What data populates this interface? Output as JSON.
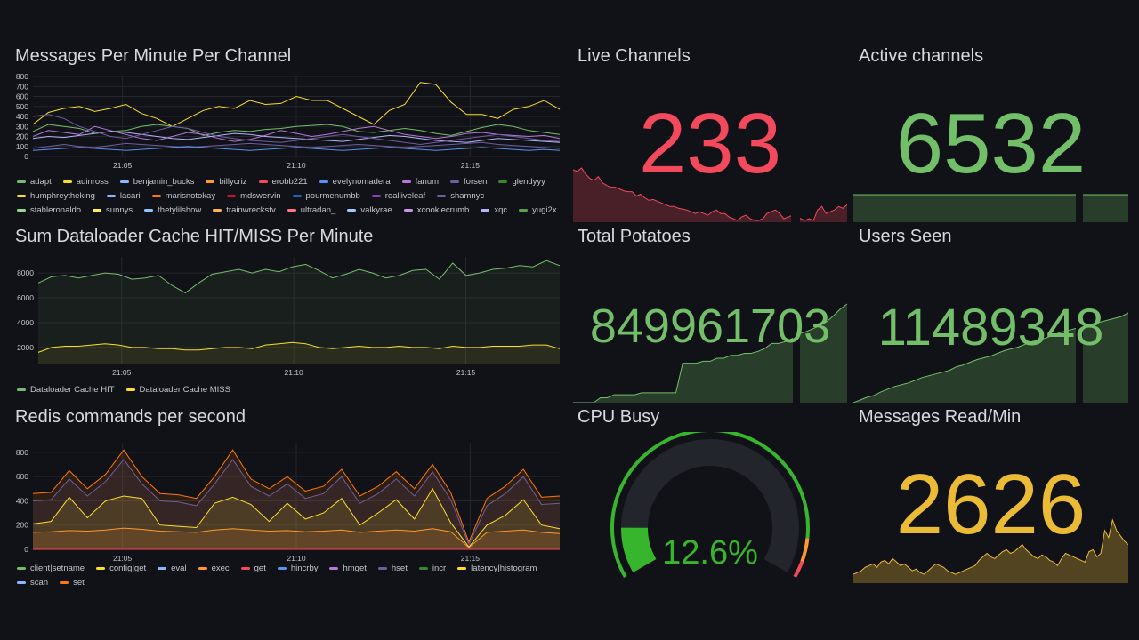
{
  "colors": {
    "red": "#f2495c",
    "green": "#73bf69",
    "yellow": "#fade2a",
    "orange": "#ff9830",
    "blue": "#5794f2",
    "purple": "#b877d9",
    "bg": "#111217"
  },
  "panels": {
    "messages_per_minute": {
      "title": "Messages Per Minute Per Channel",
      "legend": [
        {
          "name": "adapt",
          "color": "#73bf69"
        },
        {
          "name": "adinross",
          "color": "#fade2a"
        },
        {
          "name": "benjamin_bucks",
          "color": "#8ab8ff"
        },
        {
          "name": "billycriz",
          "color": "#ff9830"
        },
        {
          "name": "erobb221",
          "color": "#f2495c"
        },
        {
          "name": "evelynomadera",
          "color": "#5794f2"
        },
        {
          "name": "fanum",
          "color": "#b877d9"
        },
        {
          "name": "forsen",
          "color": "#705da0"
        },
        {
          "name": "glendyyy",
          "color": "#37872d"
        },
        {
          "name": "humphreytheking",
          "color": "#fade2a"
        },
        {
          "name": "lacari",
          "color": "#8ab8ff"
        },
        {
          "name": "marisnotokay",
          "color": "#ff780a"
        },
        {
          "name": "mdswervin",
          "color": "#c4162a"
        },
        {
          "name": "pourmenumbb",
          "color": "#1f60c4"
        },
        {
          "name": "realliveleaf",
          "color": "#8f3bb8"
        },
        {
          "name": "shamnyc",
          "color": "#705da0"
        },
        {
          "name": "stableronaldo",
          "color": "#96d98d"
        },
        {
          "name": "sunnys",
          "color": "#ffee52"
        },
        {
          "name": "thetylilshow",
          "color": "#8ac8ff"
        },
        {
          "name": "trainwreckstv",
          "color": "#ffb357"
        },
        {
          "name": "ultradan_",
          "color": "#ff7383"
        },
        {
          "name": "valkyrae",
          "color": "#a2c8ff"
        },
        {
          "name": "xcookiecrumb",
          "color": "#ca95e5"
        },
        {
          "name": "xqc",
          "color": "#b3b3ff"
        },
        {
          "name": "yugi2x",
          "color": "#56a64b"
        }
      ]
    },
    "live_channels": {
      "title": "Live Channels",
      "value": "233",
      "color": "#f2495c"
    },
    "active_channels": {
      "title": "Active channels",
      "value": "6532",
      "color": "#73bf69"
    },
    "dataloader": {
      "title": "Sum Dataloader Cache HIT/MISS Per Minute",
      "legend": [
        {
          "name": "Dataloader Cache HIT",
          "color": "#73bf69"
        },
        {
          "name": "Dataloader Cache MISS",
          "color": "#fade2a"
        }
      ]
    },
    "total_potatoes": {
      "title": "Total Potatoes",
      "value": "849961703",
      "color": "#73bf69"
    },
    "users_seen": {
      "title": "Users Seen",
      "value": "11489348",
      "color": "#73bf69"
    },
    "redis": {
      "title": "Redis commands per second",
      "legend": [
        {
          "name": "client|setname",
          "color": "#73bf69"
        },
        {
          "name": "config|get",
          "color": "#fade2a"
        },
        {
          "name": "eval",
          "color": "#8ab8ff"
        },
        {
          "name": "exec",
          "color": "#ff9830"
        },
        {
          "name": "get",
          "color": "#f2495c"
        },
        {
          "name": "hincrby",
          "color": "#5794f2"
        },
        {
          "name": "hmget",
          "color": "#b877d9"
        },
        {
          "name": "hset",
          "color": "#705da0"
        },
        {
          "name": "incr",
          "color": "#37872d"
        },
        {
          "name": "latency|histogram",
          "color": "#fade2a"
        },
        {
          "name": "scan",
          "color": "#8ab8ff"
        },
        {
          "name": "set",
          "color": "#ff780a"
        }
      ]
    },
    "cpu_busy": {
      "title": "CPU Busy",
      "value": "12.6%",
      "percent": 12.6
    },
    "messages_read": {
      "title": "Messages Read/Min",
      "value": "2626",
      "color": "#ecbb36"
    }
  },
  "chart_data": [
    {
      "type": "line",
      "title": "Messages Per Minute Per Channel",
      "x_ticks": [
        "21:05",
        "21:10",
        "21:15"
      ],
      "y_ticks": [
        0,
        100,
        200,
        300,
        400,
        500,
        600,
        700,
        800
      ],
      "ylim": [
        0,
        800
      ],
      "series": [
        {
          "name": "adinross",
          "values": [
            320,
            440,
            480,
            500,
            450,
            480,
            520,
            430,
            380,
            300,
            380,
            460,
            500,
            480,
            560,
            520,
            530,
            600,
            560,
            560,
            480,
            400,
            320,
            460,
            520,
            740,
            720,
            540,
            420,
            420,
            380,
            470,
            500,
            560,
            470
          ]
        },
        {
          "name": "adapt",
          "values": [
            250,
            320,
            300,
            280,
            230,
            250,
            260,
            300,
            320,
            300,
            280,
            210,
            240,
            260,
            250,
            270,
            280,
            300,
            310,
            320,
            300,
            250,
            240,
            260,
            280,
            260,
            230,
            210,
            250,
            290,
            320,
            300,
            260,
            240,
            220
          ]
        },
        {
          "name": "fanum",
          "values": [
            200,
            260,
            240,
            220,
            300,
            260,
            220,
            180,
            160,
            200,
            240,
            220,
            180,
            150,
            170,
            210,
            260,
            230,
            200,
            220,
            250,
            280,
            300,
            260,
            220,
            200,
            180,
            200,
            230,
            240,
            220,
            210,
            200,
            210,
            180
          ]
        },
        {
          "name": "xqc",
          "values": [
            180,
            200,
            190,
            210,
            230,
            250,
            240,
            220,
            200,
            180,
            170,
            190,
            210,
            230,
            220,
            200,
            190,
            180,
            170,
            160,
            150,
            170,
            190,
            210,
            200,
            180,
            160,
            150,
            140,
            160,
            180,
            170,
            160,
            150,
            140
          ]
        },
        {
          "name": "forsen",
          "values": [
            400,
            420,
            380,
            300,
            250,
            200,
            180,
            220,
            260,
            300,
            280,
            240,
            200,
            180,
            160,
            150,
            140,
            160,
            180,
            200,
            220,
            200,
            180,
            160,
            140,
            120,
            140,
            160,
            180,
            200,
            220,
            200,
            180,
            160,
            150
          ]
        },
        {
          "name": "shamnyc",
          "values": [
            80,
            100,
            120,
            100,
            90,
            110,
            130,
            120,
            110,
            100,
            90,
            100,
            110,
            120,
            130,
            120,
            110,
            100,
            90,
            100,
            110,
            120,
            110,
            100,
            90,
            100,
            110,
            120,
            130,
            140,
            120,
            110,
            100,
            90,
            80
          ]
        },
        {
          "name": "evelynomadera",
          "values": [
            60,
            70,
            80,
            90,
            80,
            70,
            60,
            70,
            80,
            90,
            100,
            90,
            80,
            70,
            60,
            70,
            80,
            90,
            80,
            70,
            60,
            70,
            80,
            90,
            80,
            70,
            60,
            70,
            80,
            90,
            80,
            70,
            60,
            70,
            60
          ]
        }
      ]
    },
    {
      "type": "area",
      "title": "Sum Dataloader Cache HIT/MISS Per Minute",
      "x_ticks": [
        "21:05",
        "21:10",
        "21:15"
      ],
      "y_ticks": [
        2000,
        4000,
        6000,
        8000
      ],
      "ylim": [
        700,
        9300
      ],
      "series": [
        {
          "name": "Dataloader Cache HIT",
          "values": [
            7200,
            7700,
            7800,
            7600,
            7800,
            8000,
            7900,
            7500,
            7600,
            7800,
            7000,
            6400,
            7200,
            7900,
            8100,
            8300,
            8000,
            8300,
            8100,
            8500,
            8700,
            8200,
            7600,
            7900,
            8300,
            8000,
            7600,
            7800,
            8200,
            8300,
            7500,
            8800,
            7800,
            8000,
            8300,
            8400,
            8600,
            8500,
            9000,
            8600
          ]
        },
        {
          "name": "Dataloader Cache MISS",
          "values": [
            1600,
            2000,
            2100,
            2100,
            2200,
            2300,
            2200,
            2000,
            2000,
            1900,
            1900,
            1800,
            1800,
            1900,
            2000,
            2000,
            1900,
            2200,
            2300,
            2400,
            2300,
            2000,
            1900,
            2000,
            2100,
            2000,
            2000,
            2100,
            2000,
            2000,
            1900,
            2100,
            2000,
            2000,
            2100,
            2100,
            2100,
            2200,
            2200,
            1900
          ]
        }
      ]
    },
    {
      "type": "area",
      "title": "Redis commands per second",
      "x_ticks": [
        "21:05",
        "21:10",
        "21:15"
      ],
      "y_ticks": [
        0,
        200,
        400,
        600,
        800
      ],
      "ylim": [
        0,
        880
      ],
      "series": [
        {
          "name": "set",
          "values": [
            460,
            470,
            650,
            500,
            620,
            820,
            600,
            460,
            450,
            420,
            600,
            820,
            580,
            500,
            600,
            480,
            520,
            660,
            440,
            520,
            640,
            500,
            700,
            470,
            60,
            420,
            520,
            660,
            430,
            440
          ]
        },
        {
          "name": "hset",
          "values": [
            400,
            410,
            580,
            440,
            560,
            740,
            540,
            400,
            390,
            360,
            540,
            740,
            520,
            440,
            540,
            420,
            460,
            600,
            380,
            460,
            580,
            440,
            640,
            410,
            40,
            360,
            460,
            600,
            370,
            380
          ]
        },
        {
          "name": "latency|histogram",
          "values": [
            210,
            230,
            430,
            260,
            400,
            440,
            420,
            200,
            190,
            180,
            380,
            430,
            370,
            230,
            380,
            250,
            300,
            420,
            200,
            300,
            410,
            250,
            500,
            220,
            20,
            200,
            280,
            410,
            200,
            170
          ]
        },
        {
          "name": "exec",
          "values": [
            140,
            145,
            155,
            150,
            160,
            175,
            165,
            150,
            145,
            140,
            160,
            170,
            160,
            150,
            155,
            145,
            150,
            160,
            140,
            150,
            160,
            150,
            170,
            145,
            15,
            140,
            150,
            160,
            140,
            130
          ]
        },
        {
          "name": "get",
          "values": [
            0,
            0,
            0,
            0,
            0,
            0,
            0,
            0,
            0,
            0,
            0,
            0,
            0,
            0,
            0,
            0,
            0,
            0,
            0,
            0,
            0,
            0,
            0,
            0,
            0,
            0,
            0,
            0,
            0,
            0
          ]
        }
      ]
    }
  ],
  "sparks": {
    "live_channels": [
      60,
      58,
      62,
      55,
      50,
      48,
      52,
      45,
      42,
      40,
      40,
      38,
      36,
      35,
      35,
      30,
      32,
      28,
      25,
      26,
      24,
      22,
      20,
      18,
      18,
      16,
      15,
      14,
      12,
      10,
      12,
      10,
      8,
      12,
      14,
      10,
      10,
      6,
      4,
      2,
      6,
      8,
      4,
      2,
      2,
      4,
      10,
      12,
      14,
      10,
      4,
      6,
      8,
      8,
      4,
      2,
      4,
      2,
      14,
      18,
      10,
      12,
      14,
      18,
      16,
      20
    ],
    "active_channels": [
      60,
      60,
      60,
      60,
      60,
      60,
      60,
      60,
      60,
      60,
      60,
      60,
      60,
      60,
      60,
      60,
      60,
      60,
      60,
      60,
      60,
      60,
      60,
      60,
      60,
      60,
      60,
      60,
      60,
      60,
      60
    ],
    "total_potatoes": [
      0,
      0,
      0,
      0,
      5,
      5,
      8,
      8,
      8,
      8,
      10,
      10,
      10,
      10,
      10,
      10,
      40,
      40,
      40,
      42,
      42,
      45,
      45,
      48,
      48,
      50,
      50,
      52,
      55,
      60,
      60,
      62,
      65,
      70,
      72,
      75,
      78,
      82,
      88,
      95,
      100
    ],
    "users_seen": [
      0,
      3,
      6,
      8,
      12,
      15,
      18,
      20,
      22,
      25,
      28,
      30,
      32,
      34,
      36,
      40,
      42,
      45,
      48,
      50,
      52,
      55,
      58,
      60,
      62,
      65,
      68,
      70,
      72,
      75,
      78,
      80,
      82,
      84,
      86,
      88,
      90,
      92,
      94,
      96,
      100
    ],
    "messages_read": [
      10,
      12,
      14,
      18,
      20,
      22,
      18,
      24,
      26,
      22,
      28,
      24,
      20,
      22,
      18,
      14,
      16,
      12,
      10,
      14,
      18,
      22,
      20,
      18,
      14,
      12,
      10,
      12,
      14,
      16,
      18,
      20,
      26,
      30,
      34,
      30,
      28,
      32,
      36,
      38,
      34,
      36,
      40,
      44,
      38,
      34,
      30,
      28,
      32,
      30,
      26,
      24,
      20,
      28,
      34,
      32,
      30,
      28,
      26,
      24,
      36,
      38,
      30,
      34,
      60,
      52,
      72,
      60,
      54,
      48,
      44
    ]
  }
}
